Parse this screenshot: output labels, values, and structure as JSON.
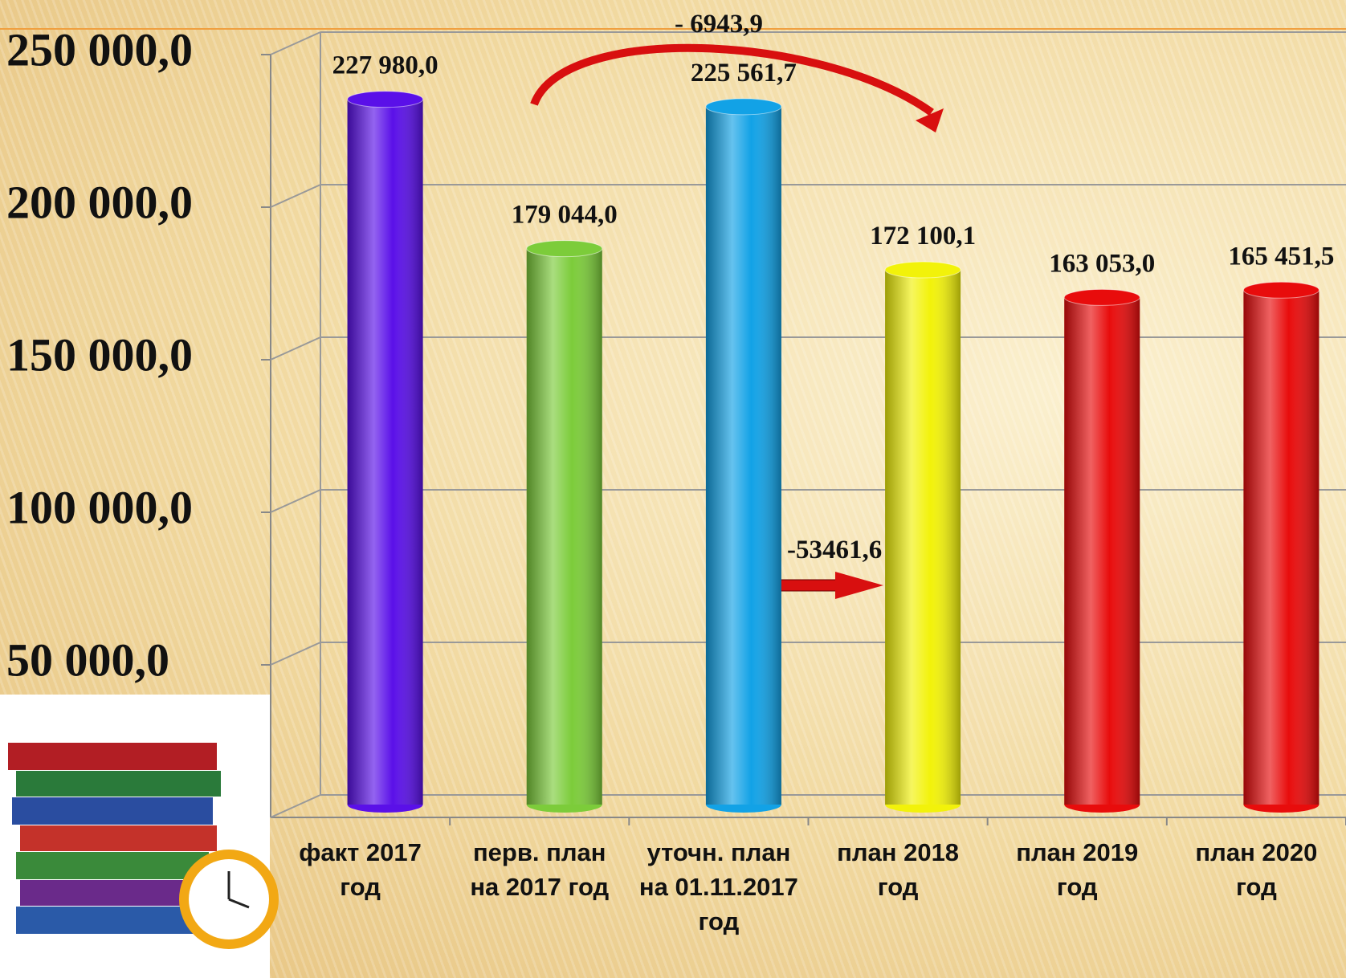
{
  "chart_data": {
    "type": "bar",
    "categories": [
      "факт 2017 год",
      "перв. план на 2017 год",
      "уточн. план на 01.11.2017 год",
      "план 2018 год",
      "план 2019 год",
      "план 2020 год"
    ],
    "values": [
      227980.0,
      179044.0,
      225561.7,
      172100.1,
      163053.0,
      165451.5
    ],
    "value_labels": [
      "227 980,0",
      "179 044,0",
      "225 561,7",
      "172 100,1",
      "163 053,0",
      "165 451,5"
    ],
    "colors": [
      "#5a10e8",
      "#7ccc3a",
      "#12a2e6",
      "#f2f20a",
      "#e80c0c",
      "#e80c0c"
    ],
    "ylim": [
      0,
      250000
    ],
    "yticks": [
      {
        "value": 50000,
        "label": "50 000,0"
      },
      {
        "value": 100000,
        "label": "100 000,0"
      },
      {
        "value": 150000,
        "label": "150 000,0"
      },
      {
        "value": 200000,
        "label": "200 000,0"
      },
      {
        "value": 250000,
        "label": "250 000,0"
      }
    ],
    "grid": true,
    "annotations": [
      "- 6943,9",
      "-53461,6"
    ]
  }
}
